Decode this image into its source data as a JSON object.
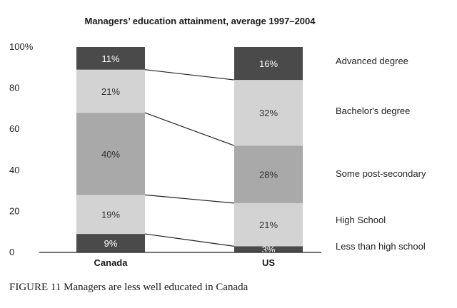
{
  "chart_data": {
    "type": "bar",
    "subtype": "stacked-100",
    "title": "Managers’ education attainment, average 1997–2004",
    "categories": [
      "Canada",
      "US"
    ],
    "series": [
      {
        "name": "Less than high school",
        "values": [
          9,
          3
        ],
        "labels": [
          "9%",
          "3%"
        ],
        "color": "#4a4a4a"
      },
      {
        "name": "High School",
        "values": [
          19,
          21
        ],
        "labels": [
          "19%",
          "21%"
        ],
        "color": "#d3d3d3"
      },
      {
        "name": "Some post-secondary",
        "values": [
          40,
          28
        ],
        "labels": [
          "40%",
          "28%"
        ],
        "color": "#a9a9a9"
      },
      {
        "name": "Bachelor's degree",
        "values": [
          21,
          32
        ],
        "labels": [
          "21%",
          "32%"
        ],
        "color": "#d3d3d3"
      },
      {
        "name": "Advanced degree",
        "values": [
          11,
          16
        ],
        "labels": [
          "11%",
          "16%"
        ],
        "color": "#4a4a4a"
      }
    ],
    "ylim": [
      0,
      100
    ],
    "yticks": [
      0,
      20,
      40,
      60,
      80,
      100
    ],
    "ytick_labels": [
      "0",
      "20",
      "40",
      "60",
      "80",
      "100%"
    ],
    "legend_placement": "right"
  },
  "caption": "FIGURE 11  Managers are less well educated in Canada"
}
